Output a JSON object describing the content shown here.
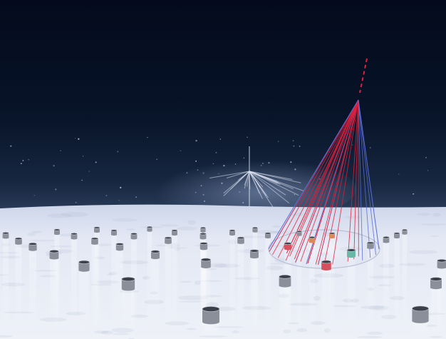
{
  "scene": {
    "description_visible_text": "",
    "colors": {
      "sky_top": "#040a1c",
      "sky_mid": "#0a1730",
      "horizon_glow": "#1a2a44",
      "snow": "#dfe6f3",
      "snow_shadow": "#aab6cf",
      "cone_red": "#e0203a",
      "cone_blue": "#5a6fd8",
      "detector_red": "#d85060",
      "detector_orange": "#d98a58",
      "detector_teal": "#68b8a8",
      "detector_gray": "#8a8f9a"
    },
    "elements": {
      "distant_shower": "air-shower-icon",
      "cosmic_ray_track": "particle-track-icon",
      "cherenkov_cone": "light-cone-icon",
      "ground_ellipse": "footprint-icon",
      "water_tanks": "detector-tank-icon"
    }
  }
}
